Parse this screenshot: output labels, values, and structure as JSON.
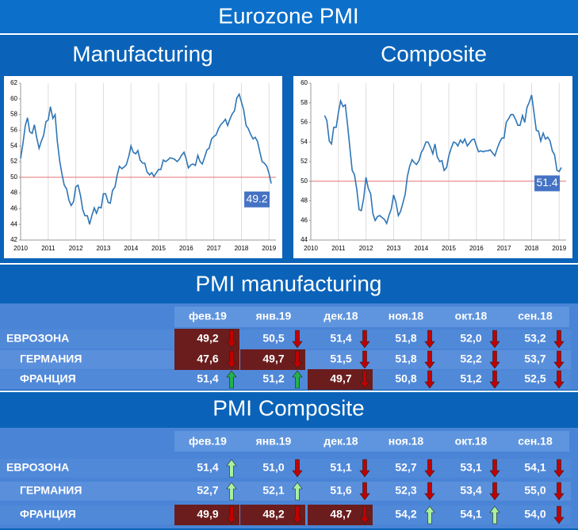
{
  "title": "Eurozone PMI",
  "chart_data": [
    {
      "type": "line",
      "title": "Manufacturing",
      "ylim": [
        42,
        62
      ],
      "yticks": [
        42,
        44,
        46,
        48,
        50,
        52,
        54,
        56,
        58,
        60,
        62
      ],
      "xlim": [
        2010,
        2019.25
      ],
      "xticks": [
        2010,
        2011,
        2012,
        2013,
        2014,
        2015,
        2016,
        2017,
        2018,
        2019
      ],
      "grid": "x",
      "reference_line": 50,
      "last_value_label": "49.2",
      "series": [
        {
          "color": "#2e75b6",
          "x": [
            2010,
            2010.08,
            2010.17,
            2010.25,
            2010.33,
            2010.42,
            2010.5,
            2010.58,
            2010.67,
            2010.75,
            2010.83,
            2010.92,
            2011,
            2011.08,
            2011.17,
            2011.25,
            2011.33,
            2011.42,
            2011.5,
            2011.58,
            2011.67,
            2011.75,
            2011.83,
            2011.92,
            2012,
            2012.08,
            2012.17,
            2012.25,
            2012.33,
            2012.42,
            2012.5,
            2012.58,
            2012.67,
            2012.75,
            2012.83,
            2012.92,
            2013,
            2013.08,
            2013.17,
            2013.25,
            2013.33,
            2013.42,
            2013.5,
            2013.58,
            2013.67,
            2013.75,
            2013.83,
            2013.92,
            2014,
            2014.08,
            2014.17,
            2014.25,
            2014.33,
            2014.42,
            2014.5,
            2014.58,
            2014.67,
            2014.75,
            2014.83,
            2014.92,
            2015,
            2015.08,
            2015.17,
            2015.25,
            2015.33,
            2015.42,
            2015.5,
            2015.58,
            2015.67,
            2015.75,
            2015.83,
            2015.92,
            2016,
            2016.08,
            2016.17,
            2016.25,
            2016.33,
            2016.42,
            2016.5,
            2016.58,
            2016.67,
            2016.75,
            2016.83,
            2016.92,
            2017,
            2017.08,
            2017.17,
            2017.25,
            2017.33,
            2017.42,
            2017.5,
            2017.58,
            2017.67,
            2017.75,
            2017.83,
            2017.92,
            2018,
            2018.08,
            2018.17,
            2018.25,
            2018.33,
            2018.42,
            2018.5,
            2018.58,
            2018.67,
            2018.75,
            2018.83,
            2018.92,
            2019,
            2019.08
          ],
          "values": [
            52.4,
            54.2,
            56.6,
            57.6,
            55.8,
            55.6,
            56.7,
            55.1,
            53.7,
            54.6,
            55.3,
            57.1,
            57.3,
            59.0,
            57.5,
            58.0,
            54.6,
            52.0,
            50.4,
            49.0,
            48.5,
            47.1,
            46.4,
            46.9,
            48.8,
            49.0,
            47.7,
            45.9,
            45.1,
            45.1,
            44.0,
            45.1,
            46.1,
            45.4,
            46.2,
            46.1,
            47.9,
            47.9,
            46.8,
            46.7,
            48.3,
            48.8,
            50.3,
            51.4,
            51.1,
            51.3,
            51.6,
            52.7,
            54.0,
            53.2,
            53.0,
            53.4,
            52.2,
            51.8,
            51.8,
            50.7,
            50.3,
            50.6,
            50.1,
            50.6,
            51.0,
            51.0,
            52.2,
            52.0,
            52.2,
            52.5,
            52.4,
            52.3,
            52.0,
            52.3,
            52.8,
            53.2,
            52.3,
            51.2,
            51.6,
            51.7,
            51.5,
            52.8,
            52.0,
            51.7,
            52.6,
            53.5,
            53.7,
            54.9,
            55.2,
            55.4,
            56.2,
            56.7,
            57.0,
            57.4,
            56.6,
            57.4,
            58.1,
            58.5,
            60.1,
            60.6,
            59.6,
            58.6,
            56.6,
            56.2,
            55.5,
            54.9,
            55.1,
            54.6,
            53.2,
            52.0,
            51.8,
            51.4,
            50.5,
            49.2
          ]
        }
      ]
    },
    {
      "type": "line",
      "title": "Composite",
      "ylim": [
        44,
        60
      ],
      "yticks": [
        44,
        46,
        48,
        50,
        52,
        54,
        56,
        58,
        60
      ],
      "xlim": [
        2010,
        2019.25
      ],
      "xticks": [
        2010,
        2011,
        2012,
        2013,
        2014,
        2015,
        2016,
        2017,
        2018,
        2019
      ],
      "grid": "x",
      "reference_line": 50,
      "last_value_label": "51.4",
      "series": [
        {
          "color": "#2e75b6",
          "x": [
            2010.5,
            2010.58,
            2010.67,
            2010.75,
            2010.83,
            2010.92,
            2011,
            2011.08,
            2011.17,
            2011.25,
            2011.33,
            2011.42,
            2011.5,
            2011.58,
            2011.67,
            2011.75,
            2011.83,
            2011.92,
            2012,
            2012.08,
            2012.17,
            2012.25,
            2012.33,
            2012.42,
            2012.5,
            2012.58,
            2012.67,
            2012.75,
            2012.83,
            2012.92,
            2013,
            2013.08,
            2013.17,
            2013.25,
            2013.33,
            2013.42,
            2013.5,
            2013.58,
            2013.67,
            2013.75,
            2013.83,
            2013.92,
            2014,
            2014.08,
            2014.17,
            2014.25,
            2014.33,
            2014.42,
            2014.5,
            2014.58,
            2014.67,
            2014.75,
            2014.83,
            2014.92,
            2015,
            2015.08,
            2015.17,
            2015.25,
            2015.33,
            2015.42,
            2015.5,
            2015.58,
            2015.67,
            2015.75,
            2015.83,
            2015.92,
            2016,
            2016.08,
            2016.17,
            2016.25,
            2016.33,
            2016.42,
            2016.5,
            2016.58,
            2016.67,
            2016.75,
            2016.83,
            2016.92,
            2017,
            2017.08,
            2017.17,
            2017.25,
            2017.33,
            2017.42,
            2017.5,
            2017.58,
            2017.67,
            2017.75,
            2017.83,
            2017.92,
            2018,
            2018.08,
            2018.17,
            2018.25,
            2018.33,
            2018.42,
            2018.5,
            2018.58,
            2018.67,
            2018.75,
            2018.83,
            2018.92,
            2019,
            2019.08
          ],
          "values": [
            56.7,
            56.2,
            54.1,
            53.8,
            55.5,
            55.5,
            57.0,
            58.2,
            57.6,
            57.8,
            55.8,
            53.3,
            51.1,
            50.7,
            49.1,
            47.1,
            47.0,
            48.3,
            50.4,
            49.3,
            48.7,
            46.7,
            46.0,
            46.4,
            46.5,
            46.3,
            46.1,
            45.7,
            46.5,
            47.2,
            48.6,
            47.9,
            46.5,
            46.9,
            47.7,
            48.7,
            50.5,
            51.5,
            52.2,
            51.9,
            51.7,
            52.1,
            52.9,
            53.3,
            54.0,
            54.0,
            53.5,
            52.8,
            53.8,
            52.5,
            52.0,
            52.1,
            51.1,
            51.4,
            52.6,
            53.3,
            54.0,
            53.9,
            53.6,
            54.2,
            53.9,
            54.3,
            53.6,
            53.9,
            54.2,
            54.3,
            53.6,
            53.0,
            53.1,
            53.0,
            53.1,
            53.1,
            53.2,
            52.9,
            52.6,
            53.3,
            53.9,
            54.4,
            54.4,
            56.0,
            56.4,
            56.8,
            56.8,
            56.3,
            55.7,
            55.7,
            56.7,
            56.0,
            57.5,
            58.1,
            58.8,
            57.1,
            55.2,
            55.1,
            54.1,
            54.9,
            54.3,
            54.5,
            54.1,
            53.1,
            52.7,
            51.1,
            51.0,
            51.4
          ]
        }
      ]
    }
  ],
  "tables": [
    {
      "title": "PMI manufacturing",
      "columns": [
        "фев.19",
        "янв.19",
        "дек.18",
        "ноя.18",
        "окт.18",
        "сен.18"
      ],
      "up_color": "#22b14c",
      "rows": [
        {
          "label": "ЕВРОЗОНА",
          "values": [
            "49,2",
            "50,5",
            "51,4",
            "51,8",
            "52,0",
            "53,2"
          ],
          "trend": [
            "down",
            "down",
            "down",
            "down",
            "down",
            "down"
          ],
          "highlight": [
            true,
            false,
            false,
            false,
            false,
            false
          ]
        },
        {
          "label": "ГЕРМАНИЯ",
          "values": [
            "47,6",
            "49,7",
            "51,5",
            "51,8",
            "52,2",
            "53,7"
          ],
          "trend": [
            "down",
            "down",
            "down",
            "down",
            "down",
            "down"
          ],
          "highlight": [
            true,
            true,
            false,
            false,
            false,
            false
          ]
        },
        {
          "label": "ФРАНЦИЯ",
          "values": [
            "51,4",
            "51,2",
            "49,7",
            "50,8",
            "51,2",
            "52,5"
          ],
          "trend": [
            "up",
            "up",
            "down",
            "down",
            "down",
            "down"
          ],
          "highlight": [
            false,
            false,
            true,
            false,
            false,
            false
          ]
        }
      ]
    },
    {
      "title": "PMI Composite",
      "columns": [
        "фев.19",
        "янв.19",
        "дек.18",
        "ноя.18",
        "окт.18",
        "сен.18"
      ],
      "up_color": "#a9f0a0",
      "rows": [
        {
          "label": "ЕВРОЗОНА",
          "values": [
            "51,4",
            "51,0",
            "51,1",
            "52,7",
            "53,1",
            "54,1"
          ],
          "trend": [
            "up",
            "down",
            "down",
            "down",
            "down",
            "down"
          ],
          "highlight": [
            false,
            false,
            false,
            false,
            false,
            false
          ]
        },
        {
          "label": "ГЕРМАНИЯ",
          "values": [
            "52,7",
            "52,1",
            "51,6",
            "52,3",
            "53,4",
            "55,0"
          ],
          "trend": [
            "up",
            "up",
            "down",
            "down",
            "down",
            "down"
          ],
          "highlight": [
            false,
            false,
            false,
            false,
            false,
            false
          ]
        },
        {
          "label": "ФРАНЦИЯ",
          "values": [
            "49,9",
            "48,2",
            "48,7",
            "54,2",
            "54,1",
            "54,0"
          ],
          "trend": [
            "down",
            "down",
            "down",
            "up",
            "up",
            "down"
          ],
          "highlight": [
            true,
            true,
            true,
            false,
            false,
            false
          ]
        }
      ]
    }
  ]
}
